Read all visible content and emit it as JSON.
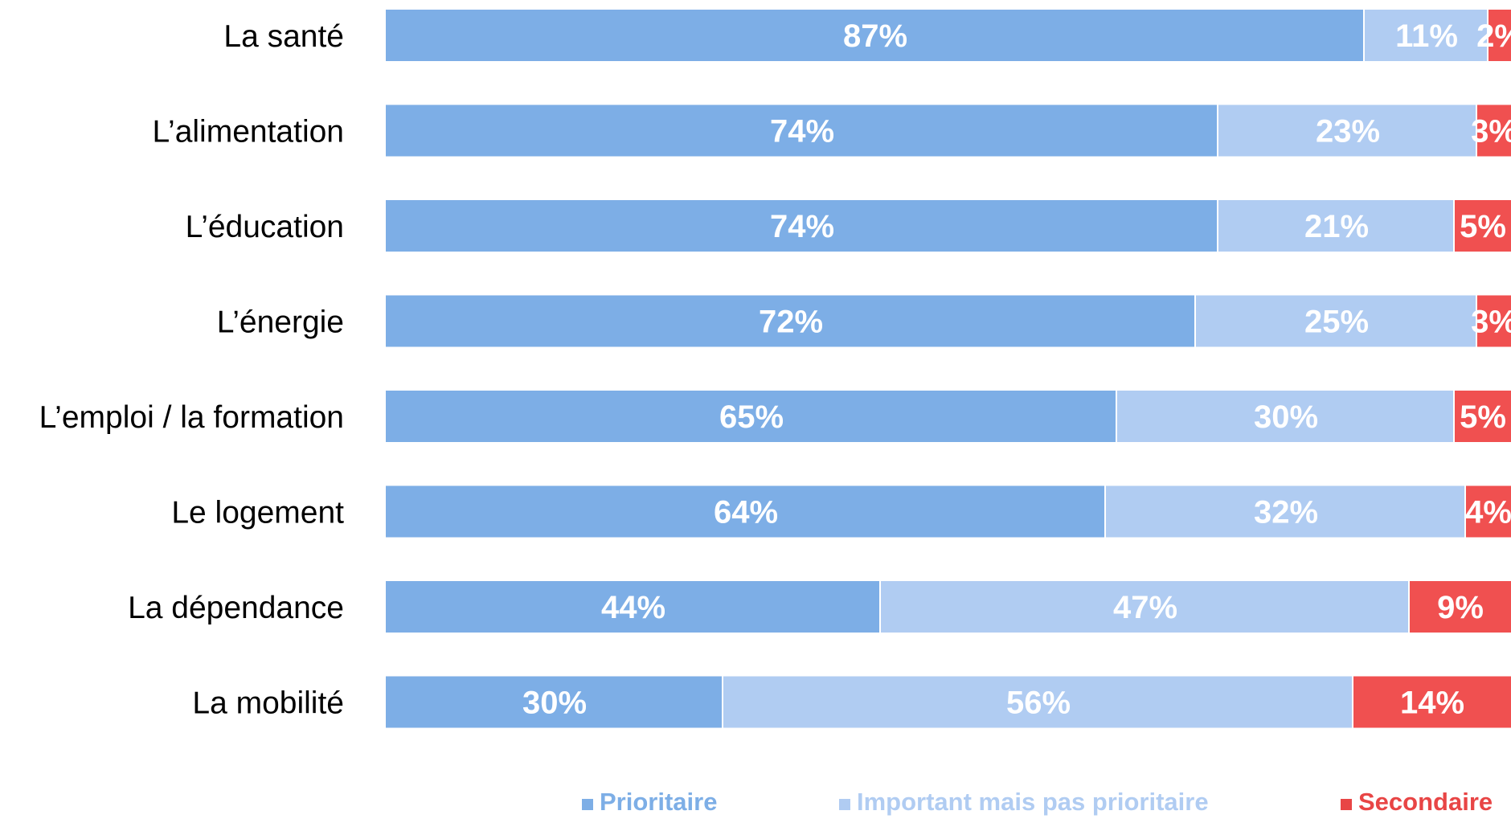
{
  "chart_data": {
    "type": "bar",
    "orientation": "horizontal",
    "stacked": true,
    "title": "",
    "xlabel": "",
    "ylabel": "",
    "xlim": [
      0,
      100
    ],
    "grid": false,
    "legend_position": "bottom",
    "value_suffix": "%",
    "categories": [
      "La santé",
      "L’alimentation",
      "L’éducation",
      "L’énergie",
      "L’emploi / la formation",
      "Le logement",
      "La dépendance",
      "La mobilité"
    ],
    "series": [
      {
        "name": "Prioritaire",
        "color": "#7DAEE6",
        "legend_color": "#7DAEE6",
        "values": [
          87,
          74,
          74,
          72,
          65,
          64,
          44,
          30
        ]
      },
      {
        "name": "Important mais pas prioritaire",
        "color": "#B0CCF2",
        "legend_color": "#B0CCF2",
        "values": [
          11,
          23,
          21,
          25,
          30,
          32,
          47,
          56
        ]
      },
      {
        "name": "Secondaire",
        "color": "#F05050",
        "legend_color": "#E84545",
        "values": [
          2,
          3,
          5,
          3,
          5,
          4,
          9,
          14
        ]
      }
    ]
  }
}
